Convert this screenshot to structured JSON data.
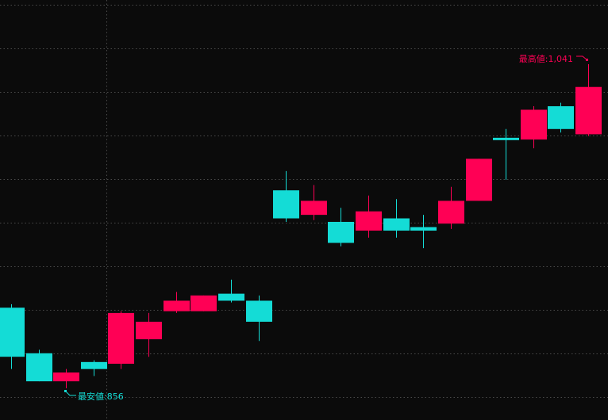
{
  "chart_data": {
    "type": "candlestick",
    "title": "",
    "xlabel": "",
    "ylabel": "",
    "ylim": [
      840,
      1075
    ],
    "grid": true,
    "colors": {
      "up": "#ff0055",
      "down": "#14dcd6",
      "background": "#0b0b0b",
      "grid": "#4a4a4a"
    },
    "candles": [
      {
        "o": 902,
        "h": 904,
        "l": 867,
        "c": 874
      },
      {
        "o": 876,
        "h": 878,
        "l": 860,
        "c": 860
      },
      {
        "o": 860,
        "h": 867,
        "l": 856,
        "c": 865
      },
      {
        "o": 871,
        "h": 872,
        "l": 863,
        "c": 867
      },
      {
        "o": 870,
        "h": 900,
        "l": 867,
        "c": 899
      },
      {
        "o": 884,
        "h": 899,
        "l": 874,
        "c": 894
      },
      {
        "o": 900,
        "h": 911,
        "l": 899,
        "c": 906
      },
      {
        "o": 900,
        "h": 909,
        "l": 900,
        "c": 909
      },
      {
        "o": 910,
        "h": 918,
        "l": 905,
        "c": 906
      },
      {
        "o": 906,
        "h": 909,
        "l": 883,
        "c": 894
      },
      {
        "o": 969,
        "h": 980,
        "l": 951,
        "c": 953
      },
      {
        "o": 955,
        "h": 972,
        "l": 952,
        "c": 963
      },
      {
        "o": 951,
        "h": 959,
        "l": 937,
        "c": 939
      },
      {
        "o": 946,
        "h": 966,
        "l": 942,
        "c": 957
      },
      {
        "o": 953,
        "h": 964,
        "l": 942,
        "c": 946
      },
      {
        "o": 948,
        "h": 955,
        "l": 936,
        "c": 946
      },
      {
        "o": 950,
        "h": 971,
        "l": 947,
        "c": 963
      },
      {
        "o": 963,
        "h": 987,
        "l": 963,
        "c": 987
      },
      {
        "o": 999,
        "h": 1004,
        "l": 975,
        "c": 998
      },
      {
        "o": 998,
        "h": 1017,
        "l": 993,
        "c": 1015
      },
      {
        "o": 1017,
        "h": 1019,
        "l": 1002,
        "c": 1004
      },
      {
        "o": 1001,
        "h": 1041,
        "l": 1000,
        "c": 1028
      }
    ],
    "annotations": {
      "high_label": "最高値:1,041",
      "high_value": 1041,
      "low_label": "最安値:856",
      "low_value": 856
    }
  }
}
